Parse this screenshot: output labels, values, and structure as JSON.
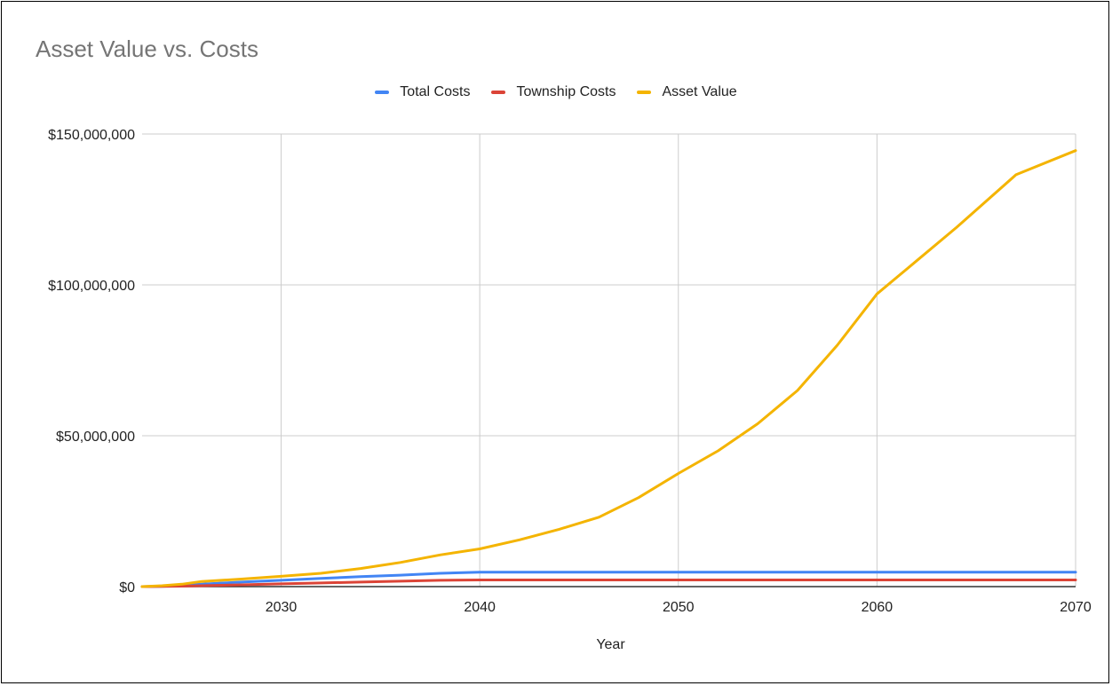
{
  "chart_data": {
    "type": "line",
    "title": "Asset Value vs. Costs",
    "xlabel": "Year",
    "ylabel": "",
    "xlim": [
      2023,
      2070
    ],
    "ylim": [
      0,
      150000000
    ],
    "xticks": [
      2030,
      2040,
      2050,
      2060,
      2070
    ],
    "yticks": [
      0,
      50000000,
      100000000,
      150000000
    ],
    "ytick_labels": [
      "$0",
      "$50,000,000",
      "$100,000,000",
      "$150,000,000"
    ],
    "grid": true,
    "legend_position": "top-center",
    "x": [
      2023,
      2024,
      2025,
      2026,
      2028,
      2030,
      2032,
      2034,
      2036,
      2038,
      2040,
      2042,
      2044,
      2046,
      2048,
      2050,
      2052,
      2054,
      2056,
      2058,
      2060,
      2062,
      2064,
      2067,
      2070
    ],
    "series": [
      {
        "name": "Total Costs",
        "color": "#4285f4",
        "values": [
          0,
          100000,
          400000,
          800000,
          1500000,
          2100000,
          2700000,
          3300000,
          3800000,
          4400000,
          4800000,
          4800000,
          4800000,
          4800000,
          4800000,
          4800000,
          4800000,
          4800000,
          4800000,
          4800000,
          4800000,
          4800000,
          4800000,
          4800000,
          4800000
        ]
      },
      {
        "name": "Township Costs",
        "color": "#db4437",
        "values": [
          0,
          50000,
          150000,
          300000,
          600000,
          900000,
          1200000,
          1500000,
          1800000,
          2100000,
          2200000,
          2200000,
          2200000,
          2200000,
          2200000,
          2200000,
          2200000,
          2200000,
          2200000,
          2200000,
          2200000,
          2200000,
          2200000,
          2200000,
          2200000
        ]
      },
      {
        "name": "Asset Value",
        "color": "#f4b400",
        "values": [
          0,
          300000,
          800000,
          1700000,
          2500000,
          3400000,
          4400000,
          6000000,
          8000000,
          10500000,
          12500000,
          15500000,
          19000000,
          23000000,
          29500000,
          37500000,
          45000000,
          54000000,
          65000000,
          80000000,
          97000000,
          108000000,
          119000000,
          136500000,
          144500000
        ]
      }
    ]
  }
}
